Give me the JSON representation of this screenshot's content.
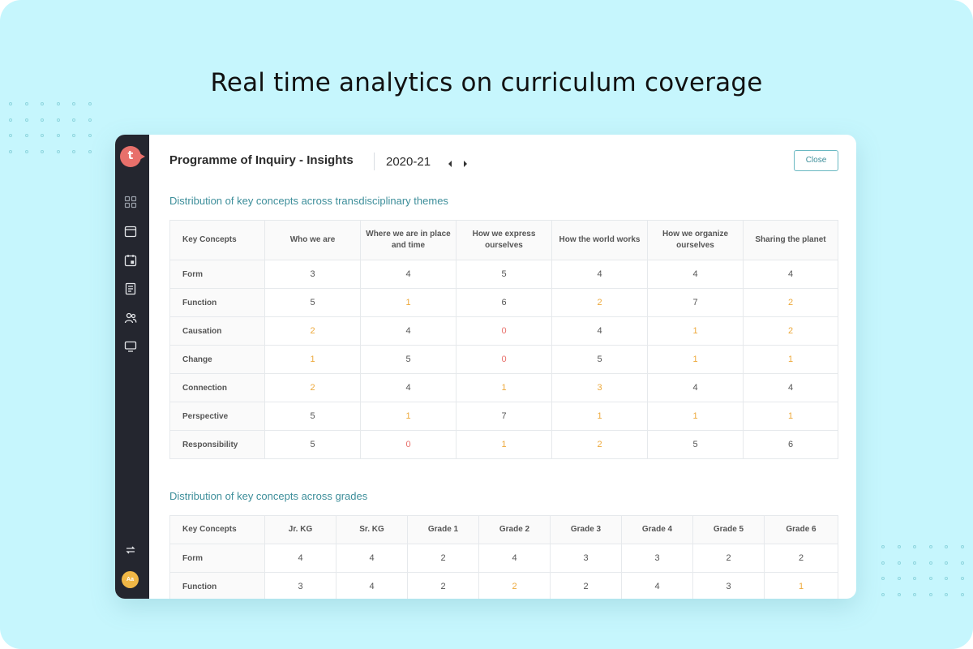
{
  "headline": "Real time analytics on curriculum coverage",
  "app": {
    "logo_letter": "t",
    "avatar_initials": "Aa",
    "sidebar_icons": [
      "grid-icon",
      "calendar-icon",
      "calendar-event-icon",
      "book-icon",
      "users-icon",
      "monitor-icon",
      "sync-icon"
    ]
  },
  "header": {
    "title": "Programme of Inquiry - Insights",
    "year": "2020-21",
    "close_label": "Close"
  },
  "colors": {
    "low": "#eda93b",
    "zero": "#e8706b",
    "accent": "#3d8e9a"
  },
  "themes_table": {
    "title": "Distribution of key concepts across transdisciplinary themes",
    "columns": [
      "Key Concepts",
      "Who we are",
      "Where we are in place and time",
      "How we express ourselves",
      "How the world works",
      "How we organize ourselves",
      "Sharing the planet"
    ],
    "rows": [
      {
        "label": "Form",
        "values": [
          "3",
          "4",
          "5",
          "4",
          "4",
          "4"
        ]
      },
      {
        "label": "Function",
        "values": [
          "5",
          "1",
          "6",
          "2",
          "7",
          "2"
        ]
      },
      {
        "label": "Causation",
        "values": [
          "2",
          "4",
          "0",
          "4",
          "1",
          "2"
        ]
      },
      {
        "label": "Change",
        "values": [
          "1",
          "5",
          "0",
          "5",
          "1",
          "1"
        ]
      },
      {
        "label": "Connection",
        "values": [
          "2",
          "4",
          "1",
          "3",
          "4",
          "4"
        ]
      },
      {
        "label": "Perspective",
        "values": [
          "5",
          "1",
          "7",
          "1",
          "1",
          "1"
        ]
      },
      {
        "label": "Responsibility",
        "values": [
          "5",
          "0",
          "1",
          "2",
          "5",
          "6"
        ]
      }
    ]
  },
  "grades_table": {
    "title": "Distribution of key concepts across grades",
    "columns": [
      "Key Concepts",
      "Jr. KG",
      "Sr. KG",
      "Grade 1",
      "Grade 2",
      "Grade 3",
      "Grade 4",
      "Grade 5",
      "Grade 6"
    ],
    "rows": [
      {
        "label": "Form",
        "values": [
          "4",
          "4",
          "2",
          "4",
          "3",
          "3",
          "2",
          "2"
        ]
      },
      {
        "label": "Function",
        "values": [
          "3",
          "4",
          "2",
          "2",
          "2",
          "4",
          "3",
          "1"
        ]
      }
    ]
  }
}
